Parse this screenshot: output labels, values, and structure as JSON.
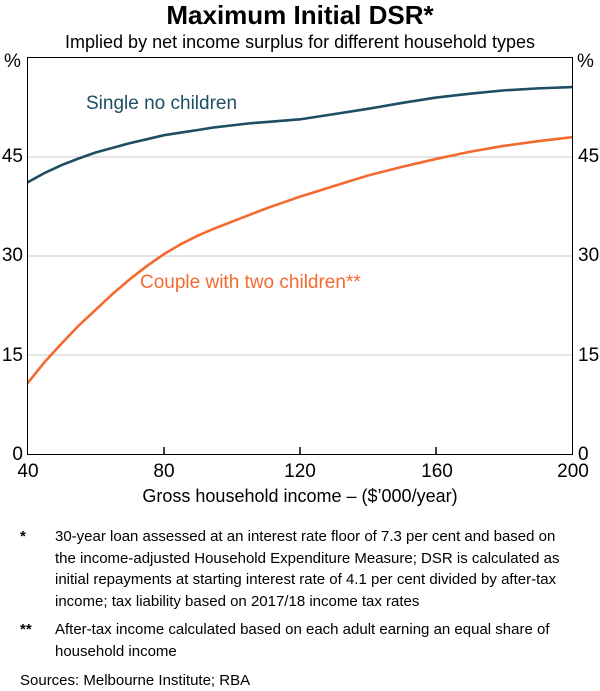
{
  "header": {
    "title": "Maximum Initial DSR*",
    "subtitle": "Implied by net income surplus for different household types"
  },
  "chart_data": {
    "type": "line",
    "title": "Maximum Initial DSR*",
    "subtitle": "Implied by net income surplus for different household types",
    "xlabel": "Gross household income – ($’000/year)",
    "ylabel_unit": "%",
    "xlim": [
      40,
      200
    ],
    "ylim": [
      0,
      60
    ],
    "grid": "horizontal",
    "legend_position": "inline-labels",
    "x": [
      40,
      45,
      50,
      55,
      60,
      65,
      70,
      75,
      80,
      85,
      90,
      95,
      100,
      105,
      110,
      115,
      120,
      125,
      130,
      140,
      150,
      160,
      170,
      180,
      190,
      200
    ],
    "series": [
      {
        "name": "Single no children",
        "color": "#1d4e63",
        "values": [
          41.2,
          42.6,
          43.8,
          44.8,
          45.7,
          46.4,
          47.1,
          47.7,
          48.3,
          48.7,
          49.1,
          49.5,
          49.8,
          50.1,
          50.3,
          50.5,
          50.7,
          51.1,
          51.5,
          52.3,
          53.2,
          54.0,
          54.6,
          55.1,
          55.4,
          55.6
        ]
      },
      {
        "name": "Couple with two children**",
        "color": "#f4692f",
        "values": [
          10.8,
          14.0,
          16.8,
          19.5,
          21.9,
          24.3,
          26.5,
          28.5,
          30.3,
          31.8,
          33.1,
          34.2,
          35.2,
          36.2,
          37.2,
          38.1,
          39.0,
          39.8,
          40.6,
          42.2,
          43.5,
          44.7,
          45.8,
          46.7,
          47.4,
          48.0
        ]
      }
    ],
    "xtick_labels": [
      "40",
      "80",
      "120",
      "160",
      "200"
    ],
    "xticks_marks": [
      80,
      120,
      160
    ],
    "ytick_labels": [
      "45",
      "30",
      "15",
      "0"
    ],
    "ygrid": [
      45,
      30,
      15
    ],
    "colors": {
      "grid": "#c8c8c8",
      "axis": "#000000"
    }
  },
  "footnotes": [
    {
      "marker": "*",
      "text": "30-year loan assessed at an interest rate floor of 7.3 per cent and based on the income-adjusted Household Expenditure Measure; DSR is calculated as initial repayments at starting interest rate of 4.1 per cent divided by after-tax income; tax liability based on 2017/18 income tax rates"
    },
    {
      "marker": "**",
      "text": "After-tax income calculated based on each adult earning an equal share of household income"
    }
  ],
  "sources": "Sources: Melbourne Institute; RBA"
}
